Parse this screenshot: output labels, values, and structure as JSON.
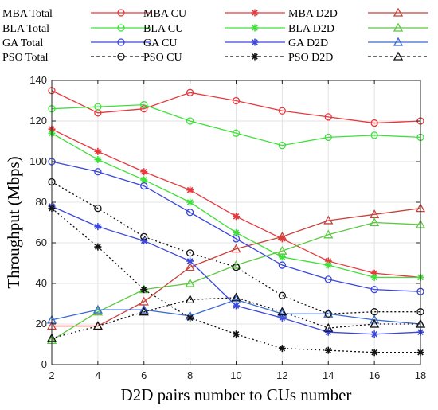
{
  "chart_data": {
    "type": "line",
    "title": "",
    "xlabel": "D2D pairs number to CUs number",
    "ylabel": "Throughput (Mbps)",
    "x": [
      2,
      4,
      6,
      8,
      10,
      12,
      14,
      16,
      18
    ],
    "xlim": [
      2,
      18
    ],
    "ylim": [
      0,
      140
    ],
    "xticks": [
      "2",
      "4",
      "6",
      "8",
      "10",
      "12",
      "14",
      "16",
      "18"
    ],
    "yticks": [
      "0",
      "20",
      "40",
      "60",
      "80",
      "100",
      "120",
      "140"
    ],
    "grid": true,
    "legend_position": "top",
    "legend_columns": 3,
    "series": [
      {
        "name": "MBA Total",
        "color": "#e8373c",
        "dash": "solid",
        "marker": "circle",
        "values": [
          135,
          124,
          126,
          134,
          130,
          125,
          122,
          119,
          120
        ]
      },
      {
        "name": "MBA CU",
        "color": "#e8373c",
        "dash": "solid",
        "marker": "asterisk",
        "values": [
          116,
          105,
          95,
          86,
          73,
          62,
          51,
          45,
          43
        ]
      },
      {
        "name": "MBA D2D",
        "color": "#c8423a",
        "dash": "solid",
        "marker": "triangle",
        "values": [
          19,
          19,
          31,
          48,
          57,
          63,
          71,
          74,
          77
        ]
      },
      {
        "name": "BLA Total",
        "color": "#3ee03a",
        "dash": "solid",
        "marker": "circle",
        "values": [
          126,
          127,
          128,
          120,
          114,
          108,
          112,
          113,
          112
        ]
      },
      {
        "name": "BLA CU",
        "color": "#3ee03a",
        "dash": "solid",
        "marker": "asterisk",
        "values": [
          114,
          101,
          91,
          80,
          65,
          53,
          49,
          43,
          43
        ]
      },
      {
        "name": "BLA D2D",
        "color": "#5cc840",
        "dash": "solid",
        "marker": "triangle",
        "values": [
          12,
          26,
          37,
          40,
          49,
          56,
          64,
          70,
          69
        ]
      },
      {
        "name": "GA Total",
        "color": "#3a46dc",
        "dash": "solid",
        "marker": "circle",
        "values": [
          100,
          95,
          88,
          75,
          62,
          49,
          42,
          37,
          36
        ]
      },
      {
        "name": "GA CU",
        "color": "#3a46dc",
        "dash": "solid",
        "marker": "asterisk",
        "values": [
          78,
          68,
          61,
          51,
          29,
          23,
          16,
          15,
          16
        ]
      },
      {
        "name": "GA D2D",
        "color": "#3a6ad0",
        "dash": "solid",
        "marker": "triangle",
        "values": [
          22,
          27,
          27,
          24,
          32,
          25,
          25,
          22,
          20
        ]
      },
      {
        "name": "PSO Total",
        "color": "#111111",
        "dash": "dotted",
        "marker": "circle",
        "values": [
          90,
          77,
          63,
          55,
          48,
          34,
          25,
          26,
          26
        ]
      },
      {
        "name": "PSO CU",
        "color": "#111111",
        "dash": "dotted",
        "marker": "asterisk",
        "values": [
          77,
          58,
          37,
          23,
          15,
          8,
          7,
          6,
          6
        ]
      },
      {
        "name": "PSO D2D",
        "color": "#111111",
        "dash": "dotted",
        "marker": "triangle",
        "values": [
          13,
          19,
          26,
          32,
          33,
          26,
          18,
          20,
          20
        ]
      }
    ]
  }
}
